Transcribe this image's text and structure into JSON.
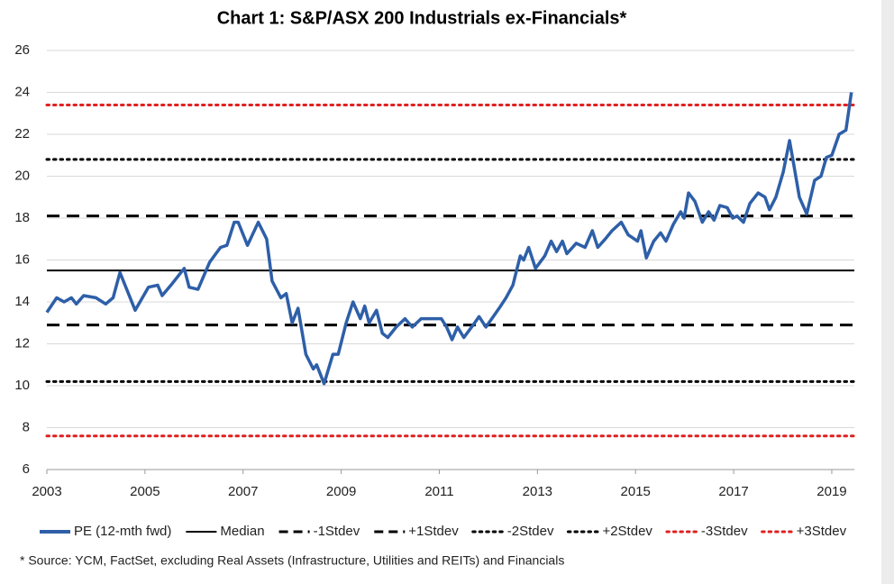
{
  "chart_data": {
    "type": "line",
    "title": "Chart 1: S&P/ASX 200 Industrials ex-Financials*",
    "footnote": "* Source: YCM, FactSet, excluding Real Assets (Infrastructure, Utilities and REITs) and Financials",
    "x": [
      2003.0,
      2003.2,
      2003.35,
      2003.5,
      2003.6,
      2003.75,
      2004.0,
      2004.2,
      2004.35,
      2004.49,
      2004.8,
      2005.07,
      2005.26,
      2005.35,
      2005.53,
      2005.8,
      2005.9,
      2006.08,
      2006.32,
      2006.54,
      2006.67,
      2006.82,
      2006.9,
      2007.09,
      2007.31,
      2007.48,
      2007.59,
      2007.77,
      2007.88,
      2008.0,
      2008.12,
      2008.28,
      2008.43,
      2008.5,
      2008.65,
      2008.83,
      2008.94,
      2009.1,
      2009.24,
      2009.39,
      2009.48,
      2009.57,
      2009.72,
      2009.84,
      2009.95,
      2010.12,
      2010.3,
      2010.45,
      2010.63,
      2010.93,
      2011.04,
      2011.15,
      2011.26,
      2011.37,
      2011.5,
      2011.72,
      2011.81,
      2011.95,
      2012.1,
      2012.25,
      2012.36,
      2012.5,
      2012.65,
      2012.72,
      2012.82,
      2012.96,
      2013.15,
      2013.28,
      2013.39,
      2013.51,
      2013.6,
      2013.79,
      2013.97,
      2014.12,
      2014.23,
      2014.38,
      2014.52,
      2014.71,
      2014.85,
      2015.04,
      2015.11,
      2015.22,
      2015.37,
      2015.51,
      2015.62,
      2015.77,
      2015.92,
      2015.99,
      2016.08,
      2016.21,
      2016.36,
      2016.49,
      2016.6,
      2016.72,
      2016.87,
      2016.98,
      2017.07,
      2017.2,
      2017.33,
      2017.5,
      2017.64,
      2017.73,
      2017.86,
      2018.01,
      2018.14,
      2018.23,
      2018.34,
      2018.49,
      2018.65,
      2018.78,
      2018.89,
      2019.0,
      2019.15,
      2019.29,
      2019.4
    ],
    "series": [
      {
        "name": "PE (12-mth fwd)",
        "color": "#2e5fa8",
        "values": [
          13.5,
          14.2,
          14.0,
          14.2,
          13.9,
          14.3,
          14.2,
          13.9,
          14.2,
          15.4,
          13.6,
          14.7,
          14.8,
          14.3,
          14.8,
          15.6,
          14.7,
          14.6,
          15.9,
          16.6,
          16.7,
          17.8,
          17.8,
          16.7,
          17.8,
          17.0,
          15.0,
          14.2,
          14.4,
          13.0,
          13.7,
          11.5,
          10.8,
          11.0,
          10.1,
          11.5,
          11.5,
          13.0,
          14.0,
          13.2,
          13.8,
          13.0,
          13.6,
          12.5,
          12.3,
          12.8,
          13.2,
          12.8,
          13.2,
          13.2,
          13.2,
          12.8,
          12.2,
          12.8,
          12.3,
          13.0,
          13.3,
          12.8,
          13.3,
          13.8,
          14.2,
          14.8,
          16.2,
          16.0,
          16.6,
          15.6,
          16.2,
          16.9,
          16.4,
          16.9,
          16.3,
          16.8,
          16.6,
          17.4,
          16.6,
          17.0,
          17.4,
          17.8,
          17.2,
          16.9,
          17.4,
          16.1,
          16.9,
          17.3,
          16.9,
          17.7,
          18.3,
          18.0,
          19.2,
          18.8,
          17.8,
          18.3,
          17.9,
          18.6,
          18.5,
          18.0,
          18.1,
          17.8,
          18.7,
          19.2,
          19.0,
          18.4,
          19.0,
          20.2,
          21.7,
          20.5,
          19.0,
          18.2,
          19.8,
          20.0,
          20.9,
          21.0,
          22.0,
          22.2,
          24.0
        ]
      }
    ],
    "reference_lines": [
      {
        "name": "Median",
        "value": 15.5,
        "color": "#000000",
        "style": "solid"
      },
      {
        "name": "-1Stdev",
        "value": 12.9,
        "color": "#000000",
        "style": "dashed"
      },
      {
        "name": "+1Stdev",
        "value": 18.1,
        "color": "#000000",
        "style": "dashed"
      },
      {
        "name": "-2Stdev",
        "value": 10.2,
        "color": "#000000",
        "style": "dotted"
      },
      {
        "name": "+2Stdev",
        "value": 20.8,
        "color": "#000000",
        "style": "dotted"
      },
      {
        "name": "-3Stdev",
        "value": 7.6,
        "color": "#e02020",
        "style": "dotted"
      },
      {
        "name": "+3Stdev",
        "value": 23.4,
        "color": "#e02020",
        "style": "dotted"
      }
    ],
    "xlim": [
      2003,
      2019.46
    ],
    "xticks": [
      2003,
      2005,
      2007,
      2009,
      2011,
      2013,
      2015,
      2017,
      2019
    ],
    "ylim": [
      6,
      26
    ],
    "yticks": [
      6,
      8,
      10,
      12,
      14,
      16,
      18,
      20,
      22,
      24,
      26
    ],
    "grid": true,
    "legend": "bottom"
  }
}
